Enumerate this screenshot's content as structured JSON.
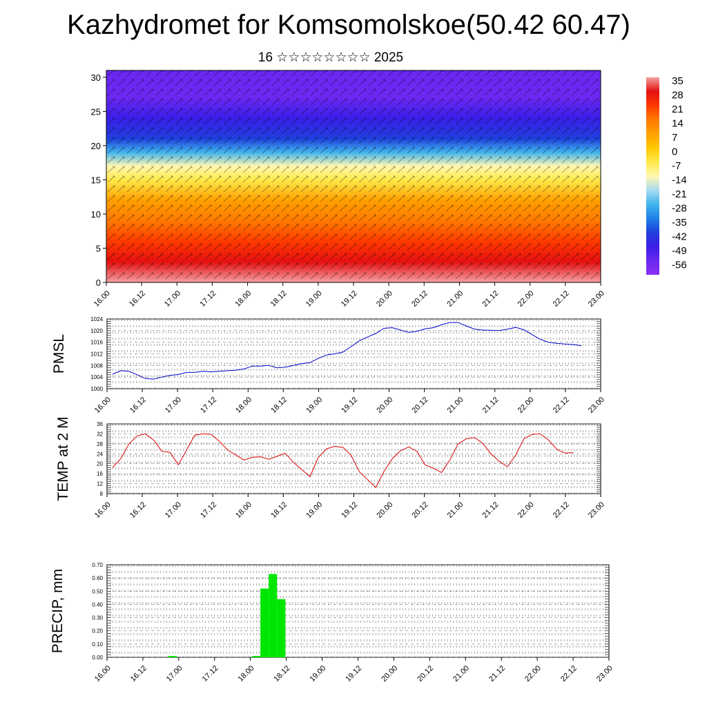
{
  "title": "Kazhydromet for Komsomolskoe(50.42 60.47)",
  "subtitle": "16 ☆☆☆☆☆☆☆☆ 2025",
  "chart_data": [
    {
      "type": "heatmap",
      "name": "cross-section",
      "x_ticks": [
        "16.00",
        "16.12",
        "17.00",
        "17.12",
        "18.00",
        "18.12",
        "19.00",
        "19.12",
        "20.00",
        "20.12",
        "21.00",
        "21.12",
        "22.00",
        "22.12",
        "23.00"
      ],
      "y_ticks": [
        "0",
        "5",
        "10",
        "15",
        "20",
        "25",
        "30"
      ],
      "ylim": [
        0,
        31
      ],
      "colorbar_labels": [
        "35",
        "28",
        "21",
        "14",
        "7",
        "0",
        "-7",
        "-14",
        "-21",
        "-28",
        "-35",
        "-42",
        "-49",
        "-56"
      ],
      "colorbar_colors": [
        "#f4a0a0",
        "#e41010",
        "#ff3a00",
        "#ff7a00",
        "#ffa000",
        "#ffc800",
        "#ffe84a",
        "#fff8b0",
        "#a8dcf0",
        "#40b4ee",
        "#2080e6",
        "#2040dc",
        "#3a1ee8",
        "#6a28f0",
        "#8a30f4"
      ],
      "level_temperature": [
        {
          "height": 0,
          "value": 34
        },
        {
          "height": 3,
          "value": 28
        },
        {
          "height": 6,
          "value": 21
        },
        {
          "height": 9,
          "value": 12
        },
        {
          "height": 12,
          "value": 4
        },
        {
          "height": 15,
          "value": -6
        },
        {
          "height": 17,
          "value": -14
        },
        {
          "height": 19,
          "value": -28
        },
        {
          "height": 21,
          "value": -40
        },
        {
          "height": 24,
          "value": -52
        },
        {
          "height": 27,
          "value": -58
        },
        {
          "height": 31,
          "value": -58
        }
      ]
    },
    {
      "type": "line",
      "ylabel": "PMSL",
      "ylim": [
        1000,
        1024
      ],
      "y_ticks": [
        "1000",
        "1004",
        "1008",
        "1012",
        "1016",
        "1020",
        "1024"
      ],
      "x_ticks": [
        "16.00",
        "16.12",
        "17.00",
        "17.12",
        "18.00",
        "18.12",
        "19.00",
        "19.12",
        "20.00",
        "20.12",
        "21.00",
        "21.12",
        "22.00",
        "22.12",
        "23.00"
      ],
      "color": "#0000cc",
      "series": [
        {
          "values": [
            1005,
            1006.2,
            1006,
            1004.8,
            1003.5,
            1003.3,
            1004,
            1004.6,
            1004.9,
            1005.6,
            1005.6,
            1006,
            1005.8,
            1006,
            1006.2,
            1006.4,
            1006.8,
            1007.8,
            1007.8,
            1008,
            1007.2,
            1007.4,
            1008,
            1008.6,
            1009,
            1010.4,
            1011.6,
            1012,
            1012.6,
            1014.5,
            1016.5,
            1017.8,
            1019,
            1020.8,
            1021,
            1020.2,
            1019.4,
            1019.8,
            1020.6,
            1021,
            1022,
            1022.8,
            1022.8,
            1021.6,
            1020.5,
            1020.2,
            1020.1,
            1020,
            1020.5,
            1021.1,
            1020.3,
            1018.6,
            1017,
            1016,
            1015.6,
            1015.4,
            1015.2,
            1014.8
          ]
        }
      ]
    },
    {
      "type": "line",
      "ylabel": "TEMP at 2 M",
      "ylim": [
        8,
        36
      ],
      "y_ticks": [
        "8",
        "12",
        "16",
        "20",
        "24",
        "28",
        "32",
        "36"
      ],
      "x_ticks": [
        "16.00",
        "16.12",
        "17.00",
        "17.12",
        "18.00",
        "18.12",
        "19.00",
        "19.12",
        "20.00",
        "20.12",
        "21.00",
        "21.12",
        "22.00",
        "22.12",
        "23.00"
      ],
      "color": "#dd0000",
      "series": [
        {
          "values": [
            18.5,
            22,
            28,
            31.2,
            32,
            29.5,
            25,
            24.6,
            19.6,
            25.5,
            31.5,
            32,
            31.8,
            29,
            25.5,
            23.5,
            21.5,
            22.6,
            22.8,
            21.8,
            23,
            24.2,
            20.5,
            17.7,
            14.8,
            22.5,
            26,
            27,
            26.6,
            23.4,
            16.8,
            13.6,
            10.5,
            17,
            22,
            25.2,
            26.8,
            25,
            19.5,
            18.2,
            16.5,
            21.5,
            28,
            30,
            30.5,
            28.2,
            24,
            21,
            18.8,
            23.5,
            30,
            31.8,
            32,
            29.5,
            25.8,
            24.3,
            24.5
          ]
        }
      ]
    },
    {
      "type": "bar",
      "ylabel": "PRECIP, mm",
      "ylim": [
        0,
        0.7
      ],
      "y_ticks": [
        "0.00",
        "0.10",
        "0.20",
        "0.30",
        "0.40",
        "0.50",
        "0.60",
        "0.70"
      ],
      "x_ticks": [
        "16.00",
        "16.12",
        "17.00",
        "17.12",
        "18.00",
        "18.12",
        "19.00",
        "19.12",
        "20.00",
        "20.12",
        "21.00",
        "21.12",
        "22.00",
        "22.12",
        "23.00"
      ],
      "color": "#00e600",
      "series": [
        {
          "values": [
            0,
            0,
            0,
            0,
            0,
            0,
            0,
            0.01,
            0,
            0,
            0,
            0,
            0,
            0,
            0,
            0,
            0,
            0.01,
            0.52,
            0.63,
            0.44,
            0,
            0,
            0,
            0,
            0,
            0,
            0,
            0,
            0,
            0,
            0,
            0,
            0,
            0,
            0,
            0,
            0,
            0,
            0,
            0,
            0,
            0,
            0,
            0,
            0,
            0,
            0,
            0,
            0,
            0,
            0,
            0,
            0,
            0,
            0
          ]
        }
      ]
    }
  ]
}
